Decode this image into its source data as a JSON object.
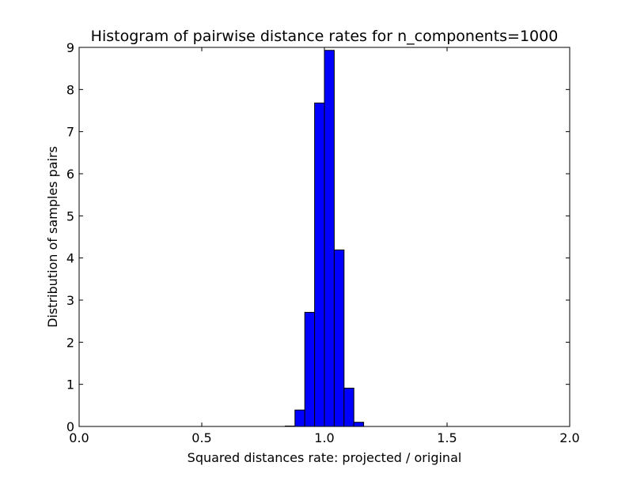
{
  "chart_data": {
    "type": "bar",
    "title": "Histogram of pairwise distance rates for n_components=1000",
    "xlabel": "Squared distances rate: projected / original",
    "ylabel": "Distribution of samples pairs",
    "xlim": [
      0.0,
      2.0
    ],
    "ylim": [
      0,
      9
    ],
    "xticks": [
      "0.0",
      "0.5",
      "1.0",
      "1.5",
      "2.0"
    ],
    "yticks": [
      "0",
      "1",
      "2",
      "3",
      "4",
      "5",
      "6",
      "7",
      "8",
      "9"
    ],
    "grid": false,
    "bar_color": "#0000ff",
    "bins": [
      {
        "x0": 0.84,
        "x1": 0.88,
        "value": 0.01
      },
      {
        "x0": 0.88,
        "x1": 0.92,
        "value": 0.39
      },
      {
        "x0": 0.92,
        "x1": 0.96,
        "value": 2.71
      },
      {
        "x0": 0.96,
        "x1": 1.0,
        "value": 7.68
      },
      {
        "x0": 1.0,
        "x1": 1.04,
        "value": 8.93
      },
      {
        "x0": 1.04,
        "x1": 1.08,
        "value": 4.19
      },
      {
        "x0": 1.08,
        "x1": 1.12,
        "value": 0.91
      },
      {
        "x0": 1.12,
        "x1": 1.16,
        "value": 0.1
      }
    ]
  }
}
